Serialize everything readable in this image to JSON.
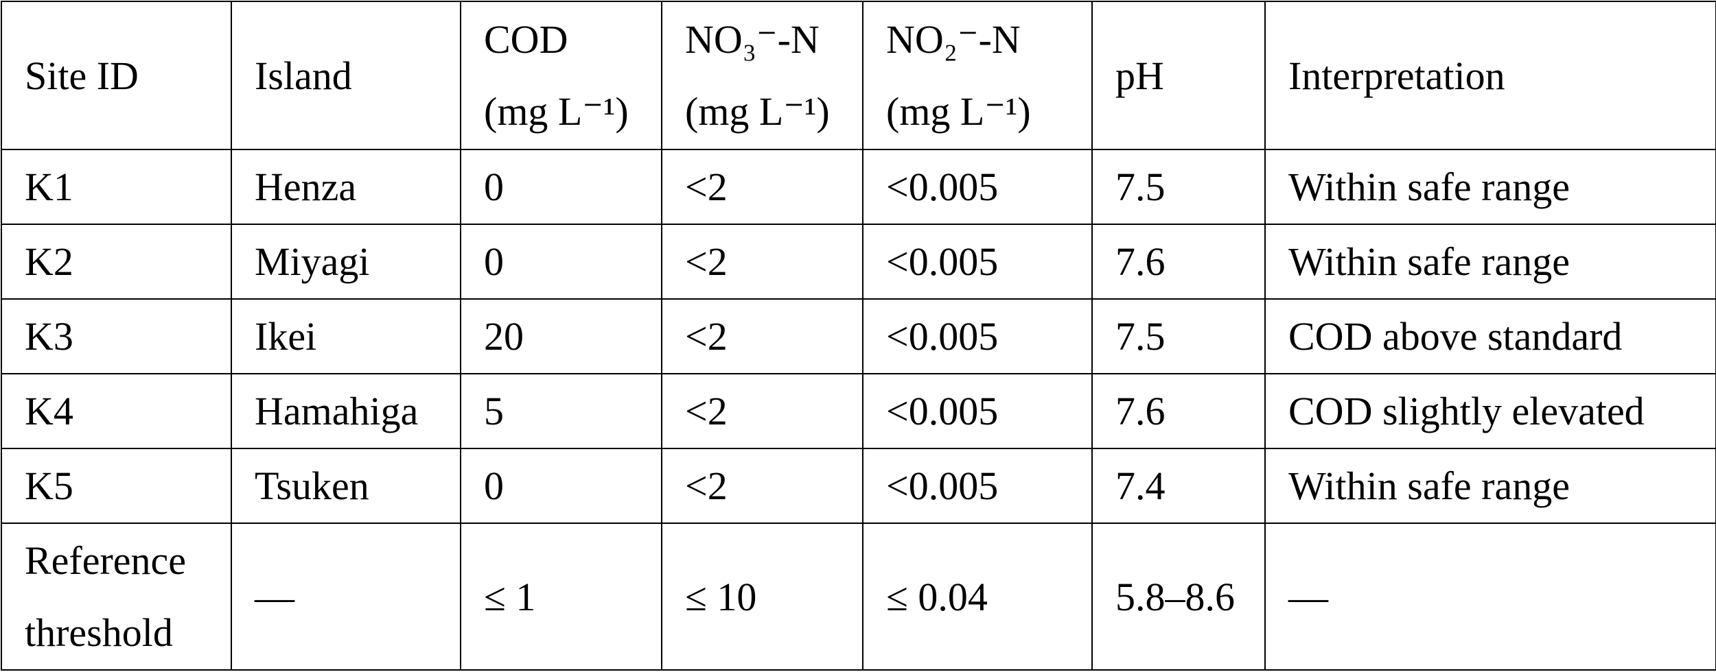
{
  "table": {
    "header": [
      [
        "Site ID"
      ],
      [
        "Island"
      ],
      [
        "COD",
        "(mg L⁻¹)"
      ],
      [
        "NO₃⁻-N",
        "(mg L⁻¹)"
      ],
      [
        "NO₂⁻-N",
        "(mg L⁻¹)"
      ],
      [
        "pH"
      ],
      [
        "Interpretation"
      ]
    ],
    "rows": [
      [
        "K1",
        "Henza",
        "0",
        "<2",
        "<0.005",
        "7.5",
        "Within safe range"
      ],
      [
        "K2",
        "Miyagi",
        "0",
        "<2",
        "<0.005",
        "7.6",
        "Within safe range"
      ],
      [
        "K3",
        "Ikei",
        "20",
        "<2",
        "<0.005",
        "7.5",
        "COD above standard"
      ],
      [
        "K4",
        "Hamahiga",
        "5",
        "<2",
        "<0.005",
        "7.6",
        "COD slightly elevated"
      ],
      [
        "K5",
        "Tsuken",
        "0",
        "<2",
        "<0.005",
        "7.4",
        "Within safe range"
      ],
      [
        "Reference threshold",
        "—",
        "≤ 1",
        "≤ 10",
        "≤ 0.04",
        "5.8–8.6",
        "—"
      ]
    ]
  }
}
